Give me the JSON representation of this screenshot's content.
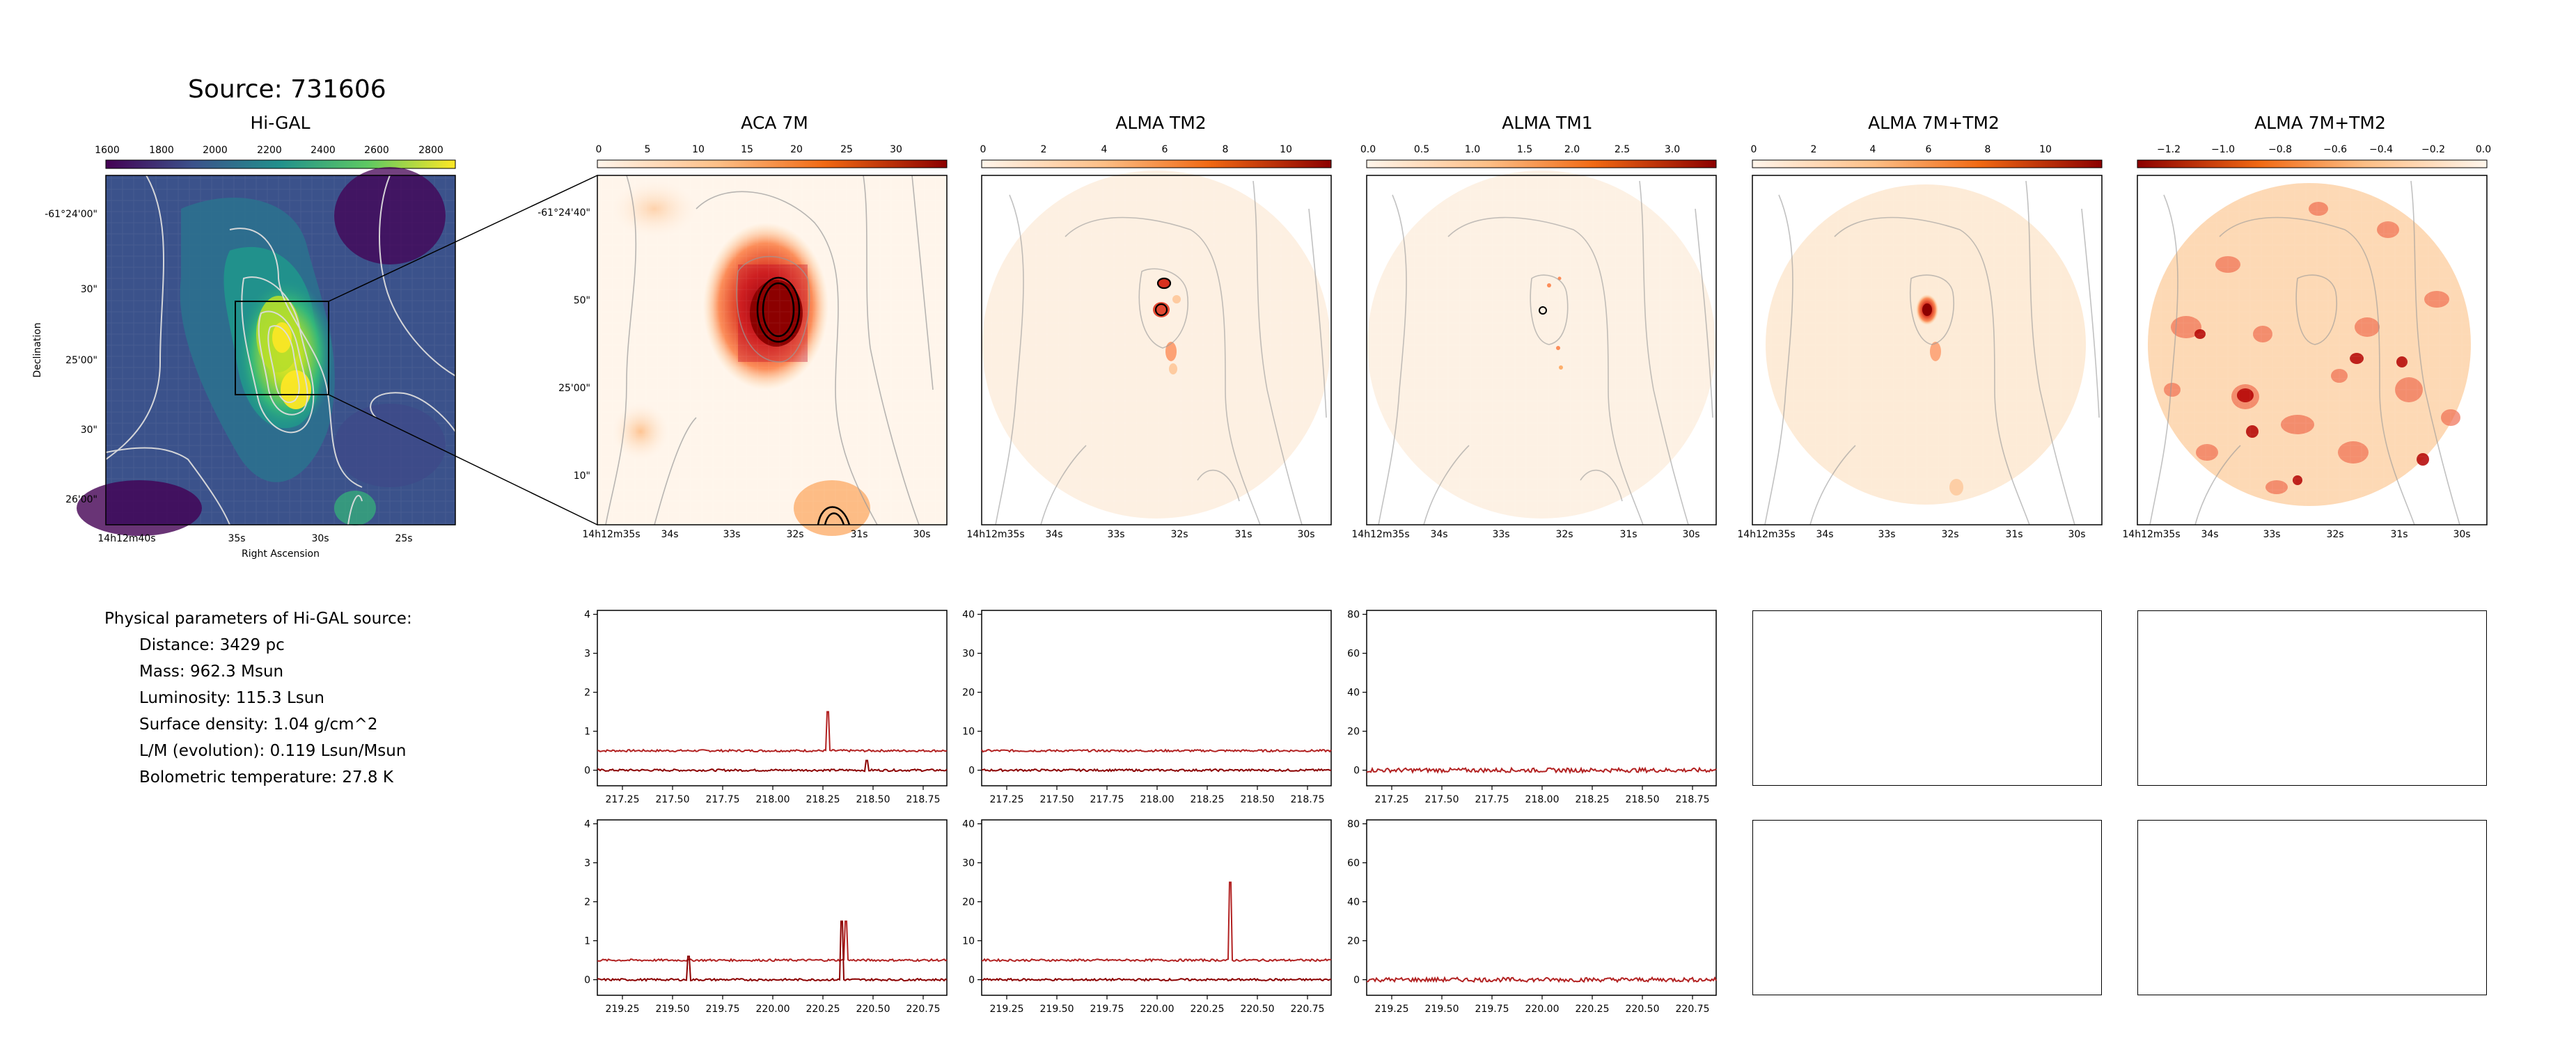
{
  "figure_title": "Source: 731606",
  "higal": {
    "title": "Hi-GAL",
    "colorbar_ticks": [
      "1600",
      "1800",
      "2000",
      "2200",
      "2400",
      "2600",
      "2800"
    ],
    "ra_ticks": [
      "14h12m40s",
      "35s",
      "30s",
      "25s"
    ],
    "dec_ticks": [
      "-61°24'00\"",
      "30\"",
      "25'00\"",
      "30\"",
      "26'00\""
    ],
    "xlabel": "Right Ascension",
    "ylabel": "Declination"
  },
  "panels": [
    {
      "title": "ACA 7M",
      "colorbar_ticks": [
        "0",
        "5",
        "10",
        "15",
        "20",
        "25",
        "30"
      ]
    },
    {
      "title": "ALMA TM2",
      "colorbar_ticks": [
        "0",
        "2",
        "4",
        "6",
        "8",
        "10"
      ]
    },
    {
      "title": "ALMA TM1",
      "colorbar_ticks": [
        "0.0",
        "0.5",
        "1.0",
        "1.5",
        "2.0",
        "2.5",
        "3.0"
      ]
    },
    {
      "title": "ALMA 7M+TM2",
      "colorbar_ticks": [
        "0",
        "2",
        "4",
        "6",
        "8",
        "10"
      ]
    },
    {
      "title": "ALMA 7M+TM2",
      "colorbar_ticks": [
        "−1.2",
        "−1.0",
        "−0.8",
        "−0.6",
        "−0.4",
        "−0.2",
        "0.0"
      ]
    }
  ],
  "zoom_ra_ticks": [
    "14h12m35s",
    "34s",
    "33s",
    "32s",
    "31s",
    "30s"
  ],
  "zoom_dec_ticks": [
    "-61°24'40\"",
    "50\"",
    "25'00\"",
    "10\""
  ],
  "params": {
    "heading": "Physical parameters of Hi-GAL source:",
    "distance": "Distance: 3429 pc",
    "mass": "Mass: 962.3 Msun",
    "luminosity": "Luminosity: 115.3 Lsun",
    "surface_density": "Surface density: 1.04 g/cm^2",
    "lm": "L/M (evolution): 0.119 Lsun/Msun",
    "tbol": "Bolometric temperature: 27.8 K"
  },
  "chart_data": [
    {
      "type": "line",
      "row": 1,
      "panel": "ACA 7M",
      "x_ticks": [
        "217.25",
        "217.50",
        "217.75",
        "218.00",
        "218.25",
        "218.50",
        "218.75"
      ],
      "y_ticks": [
        "0",
        "1",
        "2",
        "3",
        "4"
      ],
      "ylim": [
        -0.4,
        4.1
      ],
      "series": [
        {
          "baseline": 0.5
        },
        {
          "baseline": 0
        }
      ]
    },
    {
      "type": "line",
      "row": 1,
      "panel": "ALMA TM2",
      "x_ticks": [
        "217.25",
        "217.50",
        "217.75",
        "218.00",
        "218.25",
        "218.50",
        "218.75"
      ],
      "y_ticks": [
        "0",
        "10",
        "20",
        "30",
        "40"
      ],
      "ylim": [
        -4,
        41
      ],
      "series": [
        {
          "baseline": 5
        },
        {
          "baseline": 0
        }
      ]
    },
    {
      "type": "line",
      "row": 1,
      "panel": "ALMA TM1",
      "x_ticks": [
        "217.25",
        "217.50",
        "217.75",
        "218.00",
        "218.25",
        "218.50",
        "218.75"
      ],
      "y_ticks": [
        "0",
        "20",
        "40",
        "60",
        "80"
      ],
      "ylim": [
        -8,
        82
      ],
      "series": [
        {
          "baseline": 0
        }
      ]
    },
    {
      "type": "line",
      "row": 2,
      "panel": "ACA 7M",
      "x_ticks": [
        "219.25",
        "219.50",
        "219.75",
        "220.00",
        "220.25",
        "220.50",
        "220.75"
      ],
      "y_ticks": [
        "0",
        "1",
        "2",
        "3",
        "4"
      ],
      "ylim": [
        -0.4,
        4.1
      ],
      "series": [
        {
          "baseline": 0.5
        },
        {
          "baseline": 0
        }
      ]
    },
    {
      "type": "line",
      "row": 2,
      "panel": "ALMA TM2",
      "x_ticks": [
        "219.25",
        "219.50",
        "219.75",
        "220.00",
        "220.25",
        "220.50",
        "220.75"
      ],
      "y_ticks": [
        "0",
        "10",
        "20",
        "30",
        "40"
      ],
      "ylim": [
        -4,
        41
      ],
      "series": [
        {
          "baseline": 5
        },
        {
          "baseline": 0
        }
      ]
    },
    {
      "type": "line",
      "row": 2,
      "panel": "ALMA TM1",
      "x_ticks": [
        "219.25",
        "219.50",
        "219.75",
        "220.00",
        "220.25",
        "220.50",
        "220.75"
      ],
      "y_ticks": [
        "0",
        "20",
        "40",
        "60",
        "80"
      ],
      "ylim": [
        -8,
        82
      ],
      "series": [
        {
          "baseline": 0
        }
      ]
    }
  ]
}
